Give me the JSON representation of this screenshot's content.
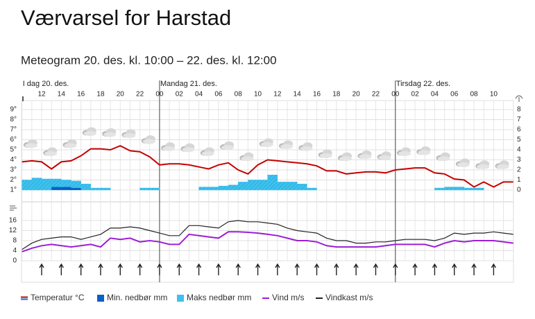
{
  "heading": "Værvarsel for Harstad",
  "chart_data": {
    "type": "meteogram",
    "title": "Meteogram 20. des. kl. 10:00 – 22. des. kl. 12:00",
    "categories": [
      null,
      null,
      "12",
      null,
      "14",
      null,
      "16",
      null,
      "18",
      null,
      "20",
      null,
      "22",
      null,
      "00",
      null,
      "02",
      null,
      "04",
      null,
      "06",
      null,
      "08",
      null,
      "10",
      null,
      "12",
      null,
      "14",
      null,
      "16",
      null,
      "18",
      null,
      "20",
      null,
      "22",
      null,
      "00",
      null,
      "02",
      null,
      "04",
      null,
      "06",
      null,
      "08",
      null,
      "10",
      null,
      null
    ],
    "day_labels": [
      {
        "index": 0,
        "label": "I dag 20. des."
      },
      {
        "index": 14,
        "label": "Mandag 21. des."
      },
      {
        "index": 38,
        "label": "Tirsdag 22. des."
      }
    ],
    "ylim": [
      1,
      9
    ],
    "yticks": [
      {
        "value": 1,
        "label": "1°"
      },
      {
        "value": 2,
        "label": "2°"
      },
      {
        "value": 3,
        "label": "3°"
      },
      {
        "value": 4,
        "label": "4°"
      },
      {
        "value": 5,
        "label": "5°"
      },
      {
        "value": 6,
        "label": "6°"
      },
      {
        "value": 7,
        "label": "7°"
      },
      {
        "value": 8,
        "label": "8°"
      },
      {
        "value": 9,
        "label": "9°"
      }
    ],
    "y2lim": [
      0,
      8
    ],
    "y2ticks": [
      0,
      1,
      2,
      3,
      4,
      5,
      6,
      7,
      8
    ],
    "y3lim": [
      0,
      16
    ],
    "y3ticks": [
      0,
      4,
      8,
      12,
      16
    ],
    "grid": true,
    "series": [
      {
        "name": "Temperatur °C",
        "color": "#c60000",
        "kind": "line",
        "axis": "y",
        "values": [
          3.8,
          3.9,
          3.8,
          3.1,
          3.8,
          3.9,
          4.4,
          5.1,
          5.1,
          5.0,
          5.4,
          4.9,
          4.8,
          4.3,
          3.5,
          3.6,
          3.6,
          3.5,
          3.3,
          3.1,
          3.5,
          3.7,
          3.0,
          2.6,
          3.5,
          4.0,
          3.9,
          3.8,
          3.7,
          3.6,
          3.4,
          2.9,
          2.9,
          2.6,
          2.7,
          2.8,
          2.8,
          2.7,
          3.0,
          3.1,
          3.2,
          3.2,
          2.7,
          2.6,
          2.1,
          2.0,
          1.3,
          1.8,
          1.3,
          1.8,
          1.8
        ]
      },
      {
        "name": "Maks nedbør mm",
        "color": "#3ec1ee",
        "kind": "bar",
        "axis": "y2",
        "values": [
          1.0,
          1.2,
          1.1,
          1.1,
          1.0,
          0.9,
          0.6,
          0.2,
          0.2,
          0,
          0,
          0,
          0.2,
          0.2,
          0,
          0,
          0,
          0,
          0.3,
          0.3,
          0.4,
          0.5,
          0.8,
          1.0,
          1.0,
          1.5,
          0.8,
          0.8,
          0.6,
          0.2,
          0,
          0,
          0,
          0,
          0,
          0,
          0,
          0,
          0,
          0,
          0,
          0,
          0.2,
          0.3,
          0.3,
          0.2,
          0.2,
          0,
          0,
          0,
          0
        ]
      },
      {
        "name": "Min. nedbør mm",
        "color": "#0a5fc8",
        "kind": "bar",
        "axis": "y2",
        "values": [
          0,
          0,
          0,
          0.3,
          0.3,
          0.2,
          0,
          0,
          0,
          0,
          0,
          0,
          0,
          0,
          0,
          0,
          0,
          0,
          0,
          0,
          0,
          0,
          0,
          0,
          0,
          0,
          0,
          0,
          0,
          0,
          0,
          0,
          0,
          0,
          0,
          0,
          0,
          0,
          0,
          0,
          0,
          0,
          0,
          0,
          0,
          0,
          0,
          0,
          0,
          0,
          0
        ]
      },
      {
        "name": "Vind m/s",
        "color": "#9b1dd6",
        "kind": "line",
        "axis": "y3",
        "values": [
          3.6,
          5,
          6,
          6.5,
          6,
          5.5,
          6,
          6.5,
          5.5,
          9,
          8.5,
          9,
          7.5,
          8,
          7.5,
          6.5,
          6.5,
          10.5,
          10,
          9.5,
          9,
          11.5,
          11.5,
          11.3,
          11,
          10.5,
          10,
          9,
          8,
          8,
          7.5,
          6,
          5.5,
          5.5,
          5.5,
          5.5,
          5.5,
          6,
          6.5,
          6.5,
          6.5,
          6.5,
          5.5,
          7,
          8,
          7.5,
          8,
          8,
          8,
          7.5,
          7
        ]
      },
      {
        "name": "Vindkast m/s",
        "color": "#222222",
        "kind": "line",
        "axis": "y3",
        "values": [
          4.5,
          7,
          8.5,
          9,
          9.5,
          9.5,
          8.5,
          9.5,
          10.5,
          13,
          13,
          13.5,
          13,
          12,
          11,
          10,
          10,
          14,
          14,
          13.5,
          13,
          15.5,
          16,
          15.5,
          15.5,
          15,
          14.5,
          13,
          12,
          11.5,
          11,
          9,
          8,
          8,
          7,
          7,
          7.5,
          7.5,
          8,
          8.5,
          8.5,
          8.5,
          8,
          9,
          11,
          10.5,
          11,
          11,
          11.5,
          11,
          10.5
        ]
      }
    ]
  }
}
